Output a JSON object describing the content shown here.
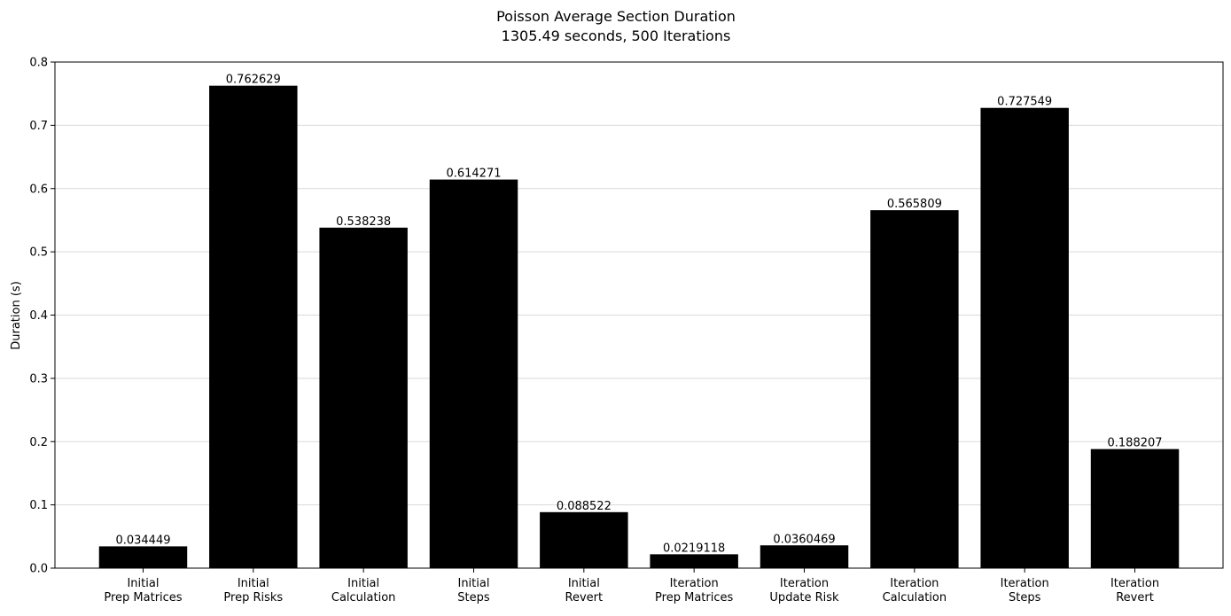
{
  "chart_data": {
    "type": "bar",
    "title": "Poisson Average Section Duration",
    "subtitle": "1305.49 seconds, 500 Iterations",
    "xlabel": "",
    "ylabel": "Duration (s)",
    "ylim": [
      0,
      0.8
    ],
    "yticks": [
      "0.0",
      "0.1",
      "0.2",
      "0.3",
      "0.4",
      "0.5",
      "0.6",
      "0.7",
      "0.8"
    ],
    "grid": "horizontal",
    "bar_color": "#000000",
    "categories": [
      [
        "Initial",
        "Prep Matrices"
      ],
      [
        "Initial",
        "Prep Risks"
      ],
      [
        "Initial",
        "Calculation"
      ],
      [
        "Initial",
        "Steps"
      ],
      [
        "Initial",
        "Revert"
      ],
      [
        "Iteration",
        "Prep Matrices"
      ],
      [
        "Iteration",
        "Update Risk"
      ],
      [
        "Iteration",
        "Calculation"
      ],
      [
        "Iteration",
        "Steps"
      ],
      [
        "Iteration",
        "Revert"
      ]
    ],
    "values": [
      0.034449,
      0.762629,
      0.538238,
      0.614271,
      0.088522,
      0.0219118,
      0.0360469,
      0.565809,
      0.727549,
      0.188207
    ],
    "data_labels": [
      "0.034449",
      "0.762629",
      "0.538238",
      "0.614271",
      "0.088522",
      "0.0219118",
      "0.0360469",
      "0.565809",
      "0.727549",
      "0.188207"
    ]
  }
}
